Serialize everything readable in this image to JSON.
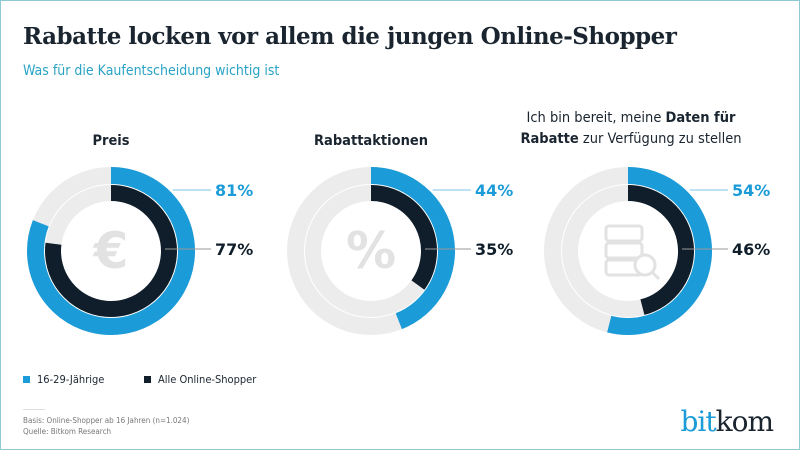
{
  "title": "Rabatte locken vor allem die jungen Online-Shopper",
  "subtitle": "Was für die Kaufentscheidung wichtig ist",
  "chart_data": [
    {
      "type": "donut",
      "title": "Preis",
      "icon": "euro-icon",
      "series": [
        {
          "name": "16-29-Jährige",
          "value": 81,
          "label": "81%"
        },
        {
          "name": "Alle Online-Shopper",
          "value": 77,
          "label": "77%"
        }
      ]
    },
    {
      "type": "donut",
      "title": "Rabattaktionen",
      "icon": "percent-icon",
      "series": [
        {
          "name": "16-29-Jährige",
          "value": 44,
          "label": "44%"
        },
        {
          "name": "Alle Online-Shopper",
          "value": 35,
          "label": "35%"
        }
      ]
    },
    {
      "type": "donut",
      "title_parts": [
        "Ich bin bereit, meine ",
        "Daten für Rabatte",
        " zur Verfügung zu stellen"
      ],
      "icon": "database-search-icon",
      "series": [
        {
          "name": "16-29-Jährige",
          "value": 54,
          "label": "54%"
        },
        {
          "name": "Alle Online-Shopper",
          "value": 46,
          "label": "46%"
        }
      ]
    }
  ],
  "legend": [
    {
      "label": "16-29-Jährige",
      "color": "#1b9bd7"
    },
    {
      "label": "Alle Online-Shopper",
      "color": "#0f1e2a"
    }
  ],
  "colors": {
    "young": "#1b9bd7",
    "all": "#0f1e2a",
    "track": "#ececec",
    "icon": "#e2e2e2"
  },
  "footer": {
    "basis": "Basis: Online-Shopper ab 16 Jahren (n=1.024)",
    "source": "Quelle: Bitkom Research"
  },
  "logo": {
    "part1": "bit",
    "part2": "kom"
  }
}
